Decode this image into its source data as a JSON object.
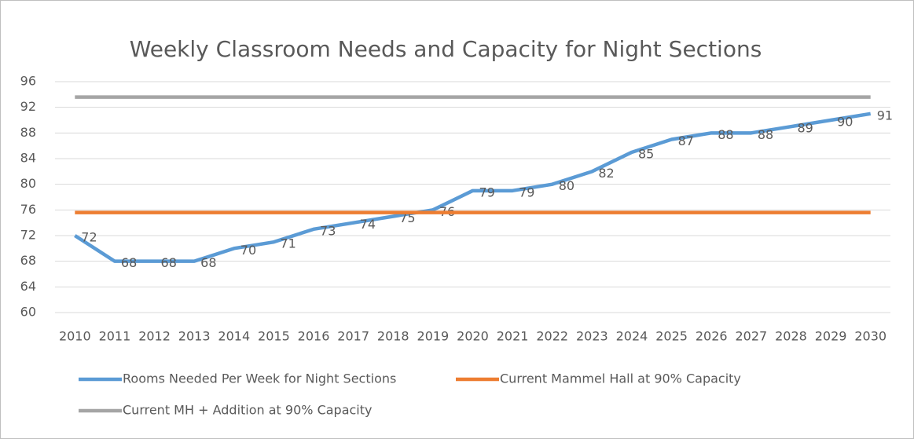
{
  "chart_data": {
    "type": "line",
    "title": "Weekly Classroom Needs and Capacity for Night Sections",
    "categories": [
      "2010",
      "2011",
      "2012",
      "2013",
      "2014",
      "2015",
      "2016",
      "2017",
      "2018",
      "2019",
      "2020",
      "2021",
      "2022",
      "2023",
      "2024",
      "2025",
      "2026",
      "2027",
      "2028",
      "2029",
      "2030"
    ],
    "ylim": [
      60,
      96
    ],
    "yticks": [
      60,
      64,
      68,
      72,
      76,
      80,
      84,
      88,
      92,
      96
    ],
    "grid": true,
    "legend": "bottom",
    "series": [
      {
        "name": "Rooms Needed Per Week for Night Sections",
        "color": "#5b9bd5",
        "data_labels": true,
        "values": [
          72,
          68,
          68,
          68,
          70,
          71,
          73,
          74,
          75,
          76,
          79,
          79,
          80,
          82,
          85,
          87,
          88,
          88,
          89,
          90,
          91
        ]
      },
      {
        "name": "Current Mammel Hall at 90% Capacity",
        "color": "#ed7d31",
        "values": [
          75.6,
          75.6,
          75.6,
          75.6,
          75.6,
          75.6,
          75.6,
          75.6,
          75.6,
          75.6,
          75.6,
          75.6,
          75.6,
          75.6,
          75.6,
          75.6,
          75.6,
          75.6,
          75.6,
          75.6,
          75.6
        ]
      },
      {
        "name": "Current MH +  Addition at 90% Capacity",
        "color": "#a5a5a5",
        "values": [
          93.6,
          93.6,
          93.6,
          93.6,
          93.6,
          93.6,
          93.6,
          93.6,
          93.6,
          93.6,
          93.6,
          93.6,
          93.6,
          93.6,
          93.6,
          93.6,
          93.6,
          93.6,
          93.6,
          93.6,
          93.6
        ]
      }
    ]
  }
}
